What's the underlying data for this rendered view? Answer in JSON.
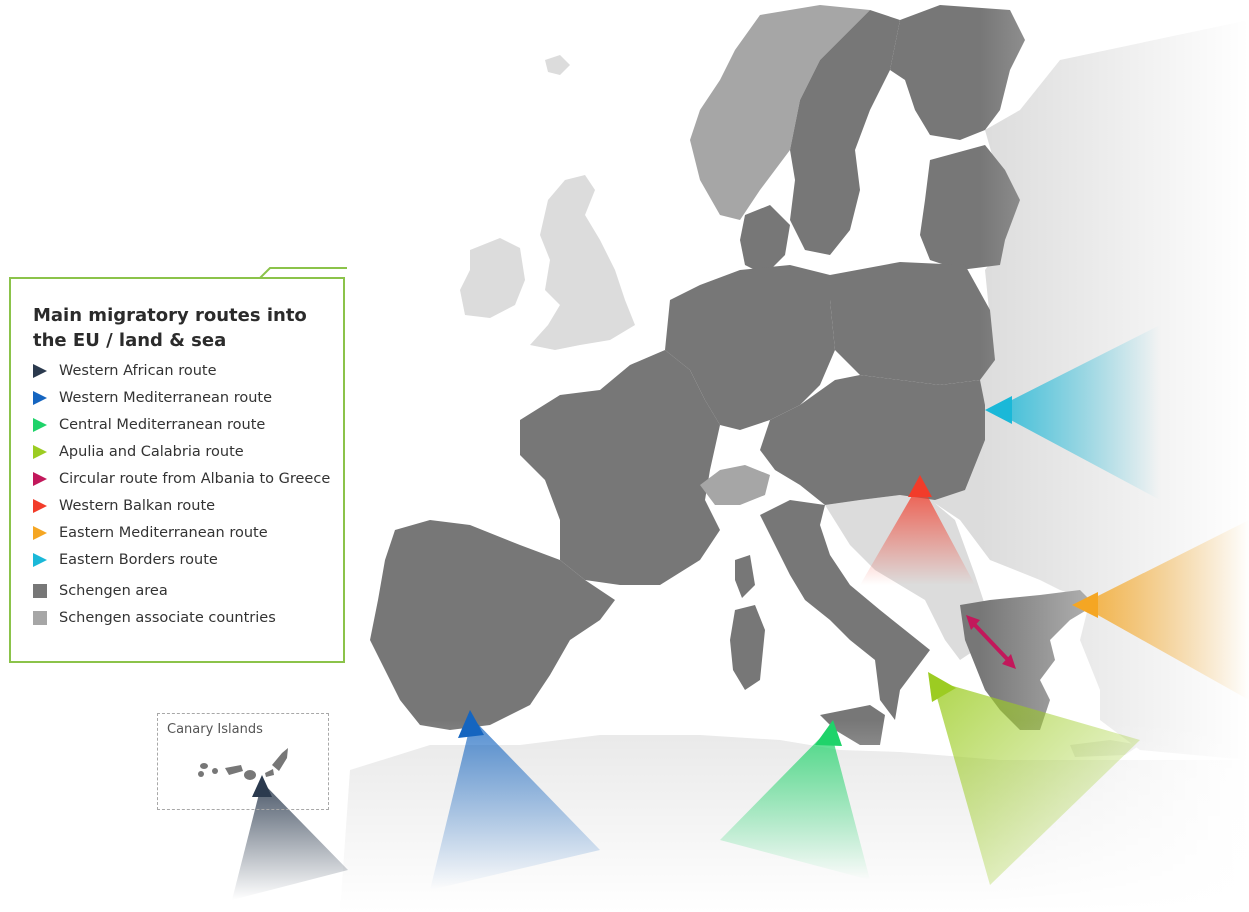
{
  "legend": {
    "title": "Main migratory routes into the EU / land & sea",
    "routes": [
      {
        "label": "Western African route",
        "color": "#2b3a4e"
      },
      {
        "label": "Western Mediterranean route",
        "color": "#1565c0"
      },
      {
        "label": "Central Mediterranean route",
        "color": "#1fd36a"
      },
      {
        "label": "Apulia and Calabria route",
        "color": "#9ccc22"
      },
      {
        "label": "Circular route from Albania to Greece",
        "color": "#c2185b"
      },
      {
        "label": "Western Balkan route",
        "color": "#f23c2a"
      },
      {
        "label": "Eastern Mediterranean route",
        "color": "#f5a623"
      },
      {
        "label": "Eastern Borders route",
        "color": "#1ab8d8"
      }
    ],
    "areas": [
      {
        "label": "Schengen area",
        "color": "#777777"
      },
      {
        "label": "Schengen associate countries",
        "color": "#a6a6a6"
      }
    ]
  },
  "inset": {
    "title": "Canary Islands"
  },
  "map_colors": {
    "schengen": "#777777",
    "associate": "#a6a6a6",
    "non_schengen": "#dcdcdc",
    "sea": "#ffffff",
    "border": "#bdbdbd"
  }
}
